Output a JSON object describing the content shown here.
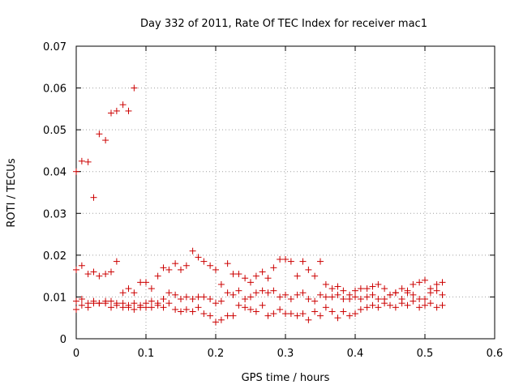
{
  "chart_data": {
    "type": "scatter",
    "title": "Day 332 of 2011, Rate Of TEC Index for receiver mac1",
    "xlabel": "GPS time / hours",
    "ylabel": "ROTI / TECUs",
    "xlim": [
      0,
      0.6
    ],
    "ylim": [
      0,
      0.07
    ],
    "xticks": [
      0,
      0.1,
      0.2,
      0.3,
      0.4,
      0.5,
      0.6
    ],
    "xtick_labels": [
      "0",
      "0.1",
      "0.2",
      "0.3",
      "0.4",
      "0.5",
      "0.6"
    ],
    "yticks": [
      0,
      0.01,
      0.02,
      0.03,
      0.04,
      0.05,
      0.06,
      0.07
    ],
    "ytick_labels": [
      "0",
      "0.01",
      "0.02",
      "0.03",
      "0.04",
      "0.05",
      "0.06",
      "0.07"
    ],
    "grid": true,
    "marker": "+",
    "color": "#cc0000",
    "series": [
      {
        "name": "",
        "x": [
          0.0,
          0.008,
          0.017,
          0.025,
          0.033,
          0.042,
          0.05,
          0.058,
          0.067,
          0.075,
          0.083,
          0.0,
          0.008,
          0.017,
          0.025,
          0.033,
          0.042,
          0.05,
          0.058,
          0.067,
          0.075,
          0.083,
          0.092,
          0.1,
          0.108,
          0.117,
          0.125,
          0.133,
          0.142,
          0.15,
          0.158,
          0.167,
          0.175,
          0.183,
          0.192,
          0.2,
          0.208,
          0.217,
          0.225,
          0.233,
          0.242,
          0.25,
          0.258,
          0.267,
          0.275,
          0.283,
          0.292,
          0.3,
          0.308,
          0.317,
          0.325,
          0.333,
          0.342,
          0.35,
          0.358,
          0.367,
          0.375,
          0.383,
          0.392,
          0.4,
          0.408,
          0.417,
          0.425,
          0.433,
          0.442,
          0.45,
          0.458,
          0.467,
          0.475,
          0.483,
          0.492,
          0.5,
          0.508,
          0.517,
          0.525,
          0.0,
          0.008,
          0.017,
          0.025,
          0.033,
          0.042,
          0.05,
          0.058,
          0.067,
          0.075,
          0.083,
          0.092,
          0.1,
          0.108,
          0.117,
          0.125,
          0.133,
          0.142,
          0.15,
          0.158,
          0.167,
          0.175,
          0.183,
          0.192,
          0.2,
          0.208,
          0.217,
          0.225,
          0.233,
          0.242,
          0.25,
          0.258,
          0.267,
          0.275,
          0.283,
          0.292,
          0.3,
          0.308,
          0.317,
          0.325,
          0.333,
          0.342,
          0.35,
          0.358,
          0.367,
          0.375,
          0.383,
          0.392,
          0.4,
          0.408,
          0.417,
          0.425,
          0.433,
          0.442,
          0.45,
          0.458,
          0.467,
          0.475,
          0.483,
          0.492,
          0.5,
          0.508,
          0.517,
          0.525,
          0.0,
          0.008,
          0.017,
          0.025,
          0.033,
          0.042,
          0.05,
          0.058,
          0.067,
          0.075,
          0.083,
          0.092,
          0.1,
          0.108,
          0.117,
          0.125,
          0.133,
          0.142,
          0.15,
          0.158,
          0.167,
          0.175,
          0.183,
          0.192,
          0.2,
          0.208,
          0.217,
          0.225,
          0.233,
          0.242,
          0.25,
          0.258,
          0.267,
          0.275,
          0.283,
          0.292,
          0.3,
          0.308,
          0.317,
          0.325,
          0.333,
          0.342,
          0.35,
          0.358,
          0.367,
          0.375,
          0.383,
          0.392,
          0.4,
          0.408,
          0.417,
          0.425,
          0.433,
          0.442,
          0.45,
          0.458,
          0.467,
          0.475,
          0.483,
          0.492,
          0.5,
          0.508,
          0.517,
          0.525
        ],
        "y": [
          0.04,
          0.0425,
          0.0423,
          0.0338,
          0.049,
          0.0475,
          0.054,
          0.0545,
          0.056,
          0.0545,
          0.06,
          0.0165,
          0.0175,
          0.0155,
          0.016,
          0.015,
          0.0155,
          0.016,
          0.0185,
          0.011,
          0.012,
          0.011,
          0.0135,
          0.0135,
          0.012,
          0.015,
          0.017,
          0.0165,
          0.018,
          0.0165,
          0.0175,
          0.021,
          0.0195,
          0.0185,
          0.0175,
          0.0165,
          0.013,
          0.018,
          0.0155,
          0.0155,
          0.0145,
          0.0135,
          0.015,
          0.016,
          0.0145,
          0.017,
          0.019,
          0.019,
          0.0185,
          0.015,
          0.0185,
          0.0165,
          0.015,
          0.0185,
          0.013,
          0.012,
          0.0125,
          0.0115,
          0.0105,
          0.0115,
          0.012,
          0.012,
          0.0125,
          0.013,
          0.012,
          0.0105,
          0.011,
          0.012,
          0.0115,
          0.013,
          0.0135,
          0.014,
          0.012,
          0.013,
          0.0135,
          0.009,
          0.0095,
          0.0085,
          0.009,
          0.0085,
          0.009,
          0.009,
          0.0085,
          0.0085,
          0.008,
          0.0085,
          0.008,
          0.0085,
          0.009,
          0.0085,
          0.0095,
          0.011,
          0.0105,
          0.0095,
          0.01,
          0.0095,
          0.01,
          0.01,
          0.0095,
          0.0085,
          0.009,
          0.011,
          0.0105,
          0.0115,
          0.0095,
          0.01,
          0.011,
          0.0115,
          0.011,
          0.0115,
          0.01,
          0.0105,
          0.0095,
          0.0105,
          0.011,
          0.0095,
          0.009,
          0.0105,
          0.01,
          0.01,
          0.0105,
          0.0095,
          0.0095,
          0.01,
          0.0095,
          0.01,
          0.0105,
          0.0095,
          0.0095,
          0.0105,
          0.011,
          0.0095,
          0.011,
          0.0105,
          0.0095,
          0.0095,
          0.011,
          0.0115,
          0.0105,
          0.007,
          0.008,
          0.0075,
          0.0085,
          0.0085,
          0.0085,
          0.0075,
          0.008,
          0.0075,
          0.0075,
          0.007,
          0.0075,
          0.0075,
          0.0075,
          0.008,
          0.0075,
          0.0085,
          0.007,
          0.0065,
          0.007,
          0.0065,
          0.0075,
          0.006,
          0.0055,
          0.004,
          0.0045,
          0.0055,
          0.0055,
          0.008,
          0.0075,
          0.007,
          0.0065,
          0.008,
          0.0055,
          0.006,
          0.007,
          0.006,
          0.006,
          0.0055,
          0.006,
          0.0045,
          0.0065,
          0.0055,
          0.0075,
          0.0065,
          0.005,
          0.0065,
          0.0055,
          0.006,
          0.007,
          0.0075,
          0.008,
          0.0075,
          0.0085,
          0.008,
          0.0075,
          0.0085,
          0.008,
          0.009,
          0.0075,
          0.008,
          0.0085,
          0.0075,
          0.008
        ]
      }
    ]
  }
}
